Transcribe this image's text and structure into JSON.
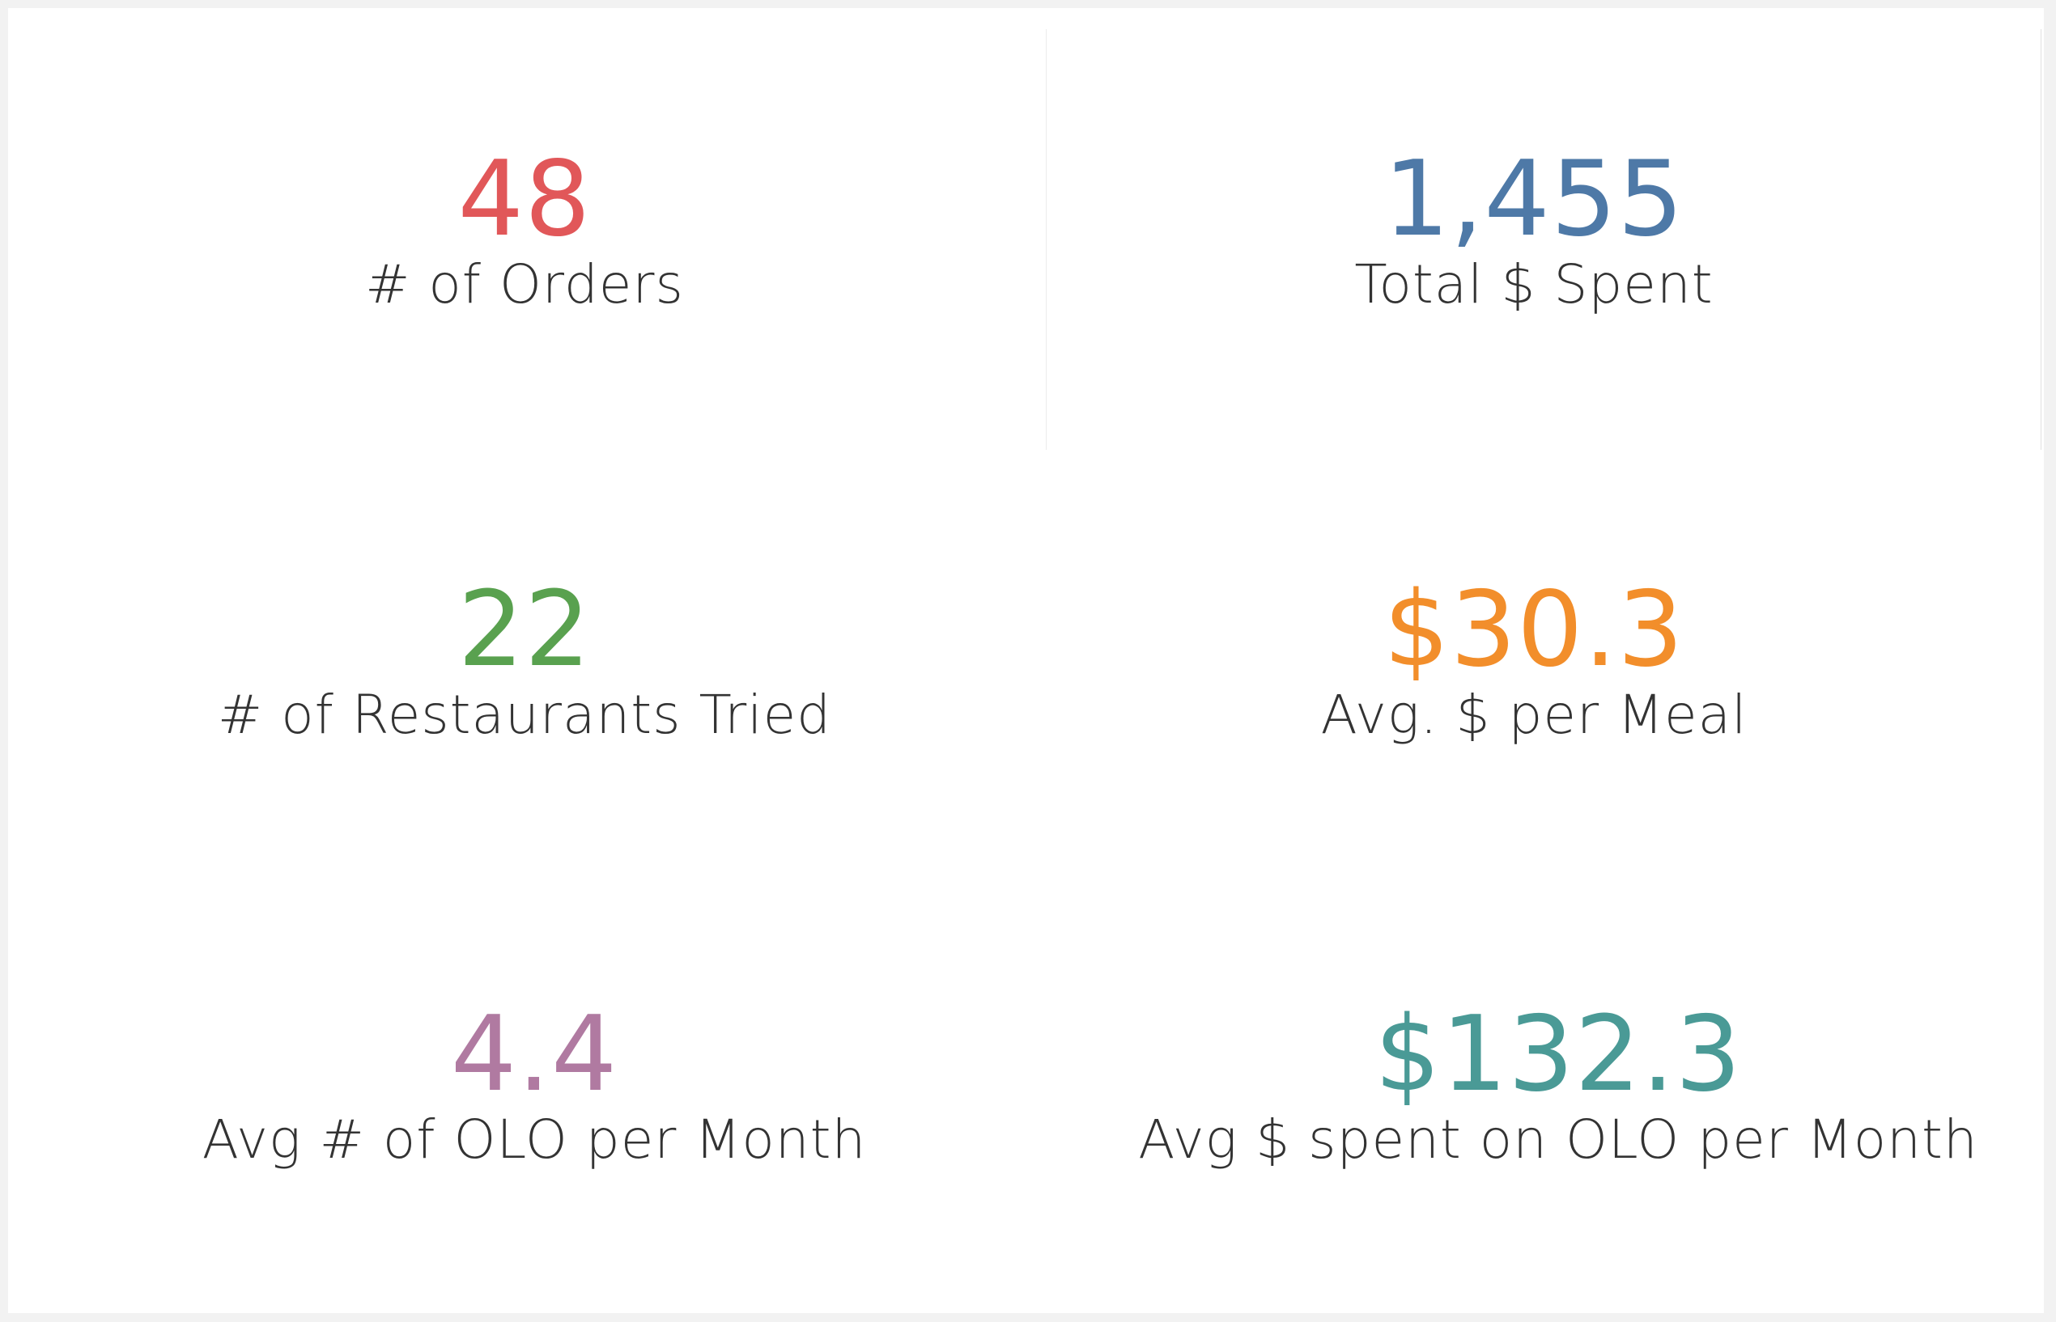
{
  "kpis": [
    {
      "value": "48",
      "label": "# of Orders",
      "color": "#e15759"
    },
    {
      "value": "1,455",
      "label": "Total $ Spent",
      "color": "#4e79a7"
    },
    {
      "value": "22",
      "label": "# of Restaurants Tried",
      "color": "#59a14f"
    },
    {
      "value": "$30.3",
      "label": "Avg. $ per Meal",
      "color": "#f28e2b"
    },
    {
      "value": "4.4",
      "label": "Avg # of OLO per Month",
      "color": "#b07aa1"
    },
    {
      "value": "$132.3",
      "label": "Avg $ spent on OLO per Month",
      "color": "#4a9a96"
    }
  ]
}
